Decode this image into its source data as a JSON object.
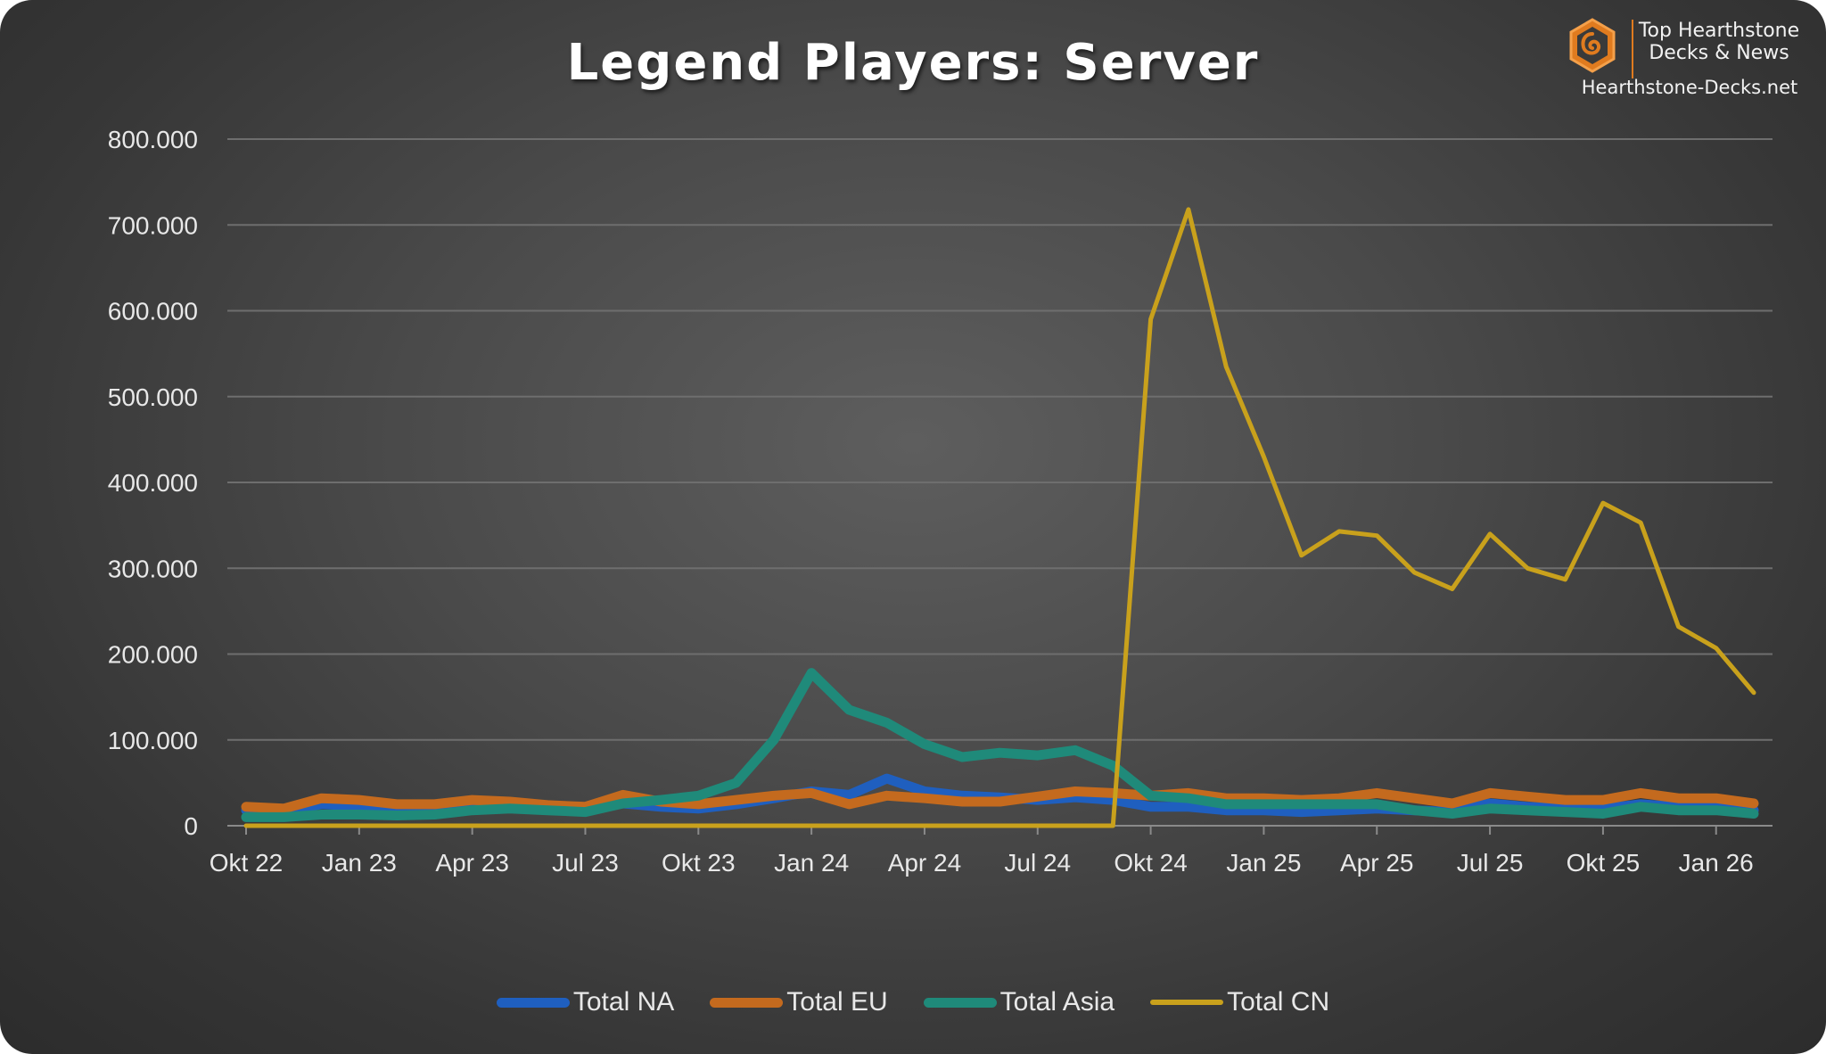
{
  "brand": {
    "line1": "Top Hearthstone",
    "line2": "Decks & News",
    "site": "Hearthstone-Decks.net",
    "accent": "#e07b1f"
  },
  "chart_data": {
    "type": "line",
    "title": "Legend Players: Server",
    "xlabel": "",
    "ylabel": "",
    "ylim": [
      0,
      800000
    ],
    "yticks": [
      0,
      100000,
      200000,
      300000,
      400000,
      500000,
      600000,
      700000,
      800000
    ],
    "ytick_labels": [
      "0",
      "100.000",
      "200.000",
      "300.000",
      "400.000",
      "500.000",
      "600.000",
      "700.000",
      "800.000"
    ],
    "x": [
      "2022-10",
      "2022-11",
      "2022-12",
      "2023-01",
      "2023-02",
      "2023-03",
      "2023-04",
      "2023-05",
      "2023-06",
      "2023-07",
      "2023-08",
      "2023-09",
      "2023-10",
      "2023-11",
      "2023-12",
      "2024-01",
      "2024-02",
      "2024-03",
      "2024-04",
      "2024-05",
      "2024-06",
      "2024-07",
      "2024-08",
      "2024-09",
      "2024-10",
      "2024-11",
      "2024-12",
      "2025-01",
      "2025-02",
      "2025-03",
      "2025-04",
      "2025-05",
      "2025-06",
      "2025-07",
      "2025-08",
      "2025-09",
      "2025-10",
      "2025-11",
      "2025-12",
      "2026-01",
      "2026-02"
    ],
    "xtick_labels": [
      "Okt 22",
      "Jan 23",
      "Apr 23",
      "Jul 23",
      "Okt 23",
      "Jan 24",
      "Apr 24",
      "Jul 24",
      "Okt 24",
      "Jan 25",
      "Apr 25",
      "Jul 25",
      "Okt 25",
      "Jan 26"
    ],
    "grid": true,
    "legend": "bottom",
    "series": [
      {
        "name": "Total NA",
        "color": "#1f5fbf",
        "values": [
          18000,
          18000,
          25000,
          23000,
          19000,
          19000,
          22000,
          22000,
          20000,
          18000,
          26000,
          22000,
          20000,
          25000,
          32000,
          40000,
          36000,
          55000,
          40000,
          35000,
          33000,
          30000,
          33000,
          30000,
          22000,
          22000,
          18000,
          18000,
          16000,
          18000,
          20000,
          18000,
          16000,
          26000,
          22000,
          20000,
          20000,
          25000,
          22000,
          22000,
          18000
        ]
      },
      {
        "name": "Total EU",
        "color": "#c46a1e",
        "values": [
          22000,
          20000,
          32000,
          30000,
          25000,
          25000,
          30000,
          28000,
          24000,
          22000,
          36000,
          28000,
          25000,
          30000,
          35000,
          38000,
          25000,
          35000,
          32000,
          28000,
          28000,
          34000,
          40000,
          38000,
          35000,
          38000,
          32000,
          32000,
          30000,
          32000,
          38000,
          32000,
          26000,
          38000,
          34000,
          30000,
          30000,
          38000,
          32000,
          32000,
          26000
        ]
      },
      {
        "name": "Total Asia",
        "color": "#1f8a7a",
        "values": [
          10000,
          10000,
          13000,
          13000,
          12000,
          13000,
          18000,
          20000,
          18000,
          16000,
          26000,
          30000,
          35000,
          50000,
          100000,
          178000,
          135000,
          120000,
          95000,
          80000,
          85000,
          82000,
          88000,
          70000,
          35000,
          32000,
          25000,
          25000,
          25000,
          25000,
          25000,
          18000,
          14000,
          20000,
          18000,
          16000,
          14000,
          22000,
          18000,
          18000,
          14000
        ]
      },
      {
        "name": "Total CN",
        "color": "#c9a11c",
        "values": [
          0,
          0,
          0,
          0,
          0,
          0,
          0,
          0,
          0,
          0,
          0,
          0,
          0,
          0,
          0,
          0,
          0,
          0,
          0,
          0,
          0,
          0,
          0,
          0,
          590000,
          718000,
          535000,
          430000,
          315000,
          343000,
          338000,
          295000,
          276000,
          340000,
          300000,
          287000,
          376000,
          353000,
          232000,
          207000,
          155000
        ]
      }
    ]
  }
}
